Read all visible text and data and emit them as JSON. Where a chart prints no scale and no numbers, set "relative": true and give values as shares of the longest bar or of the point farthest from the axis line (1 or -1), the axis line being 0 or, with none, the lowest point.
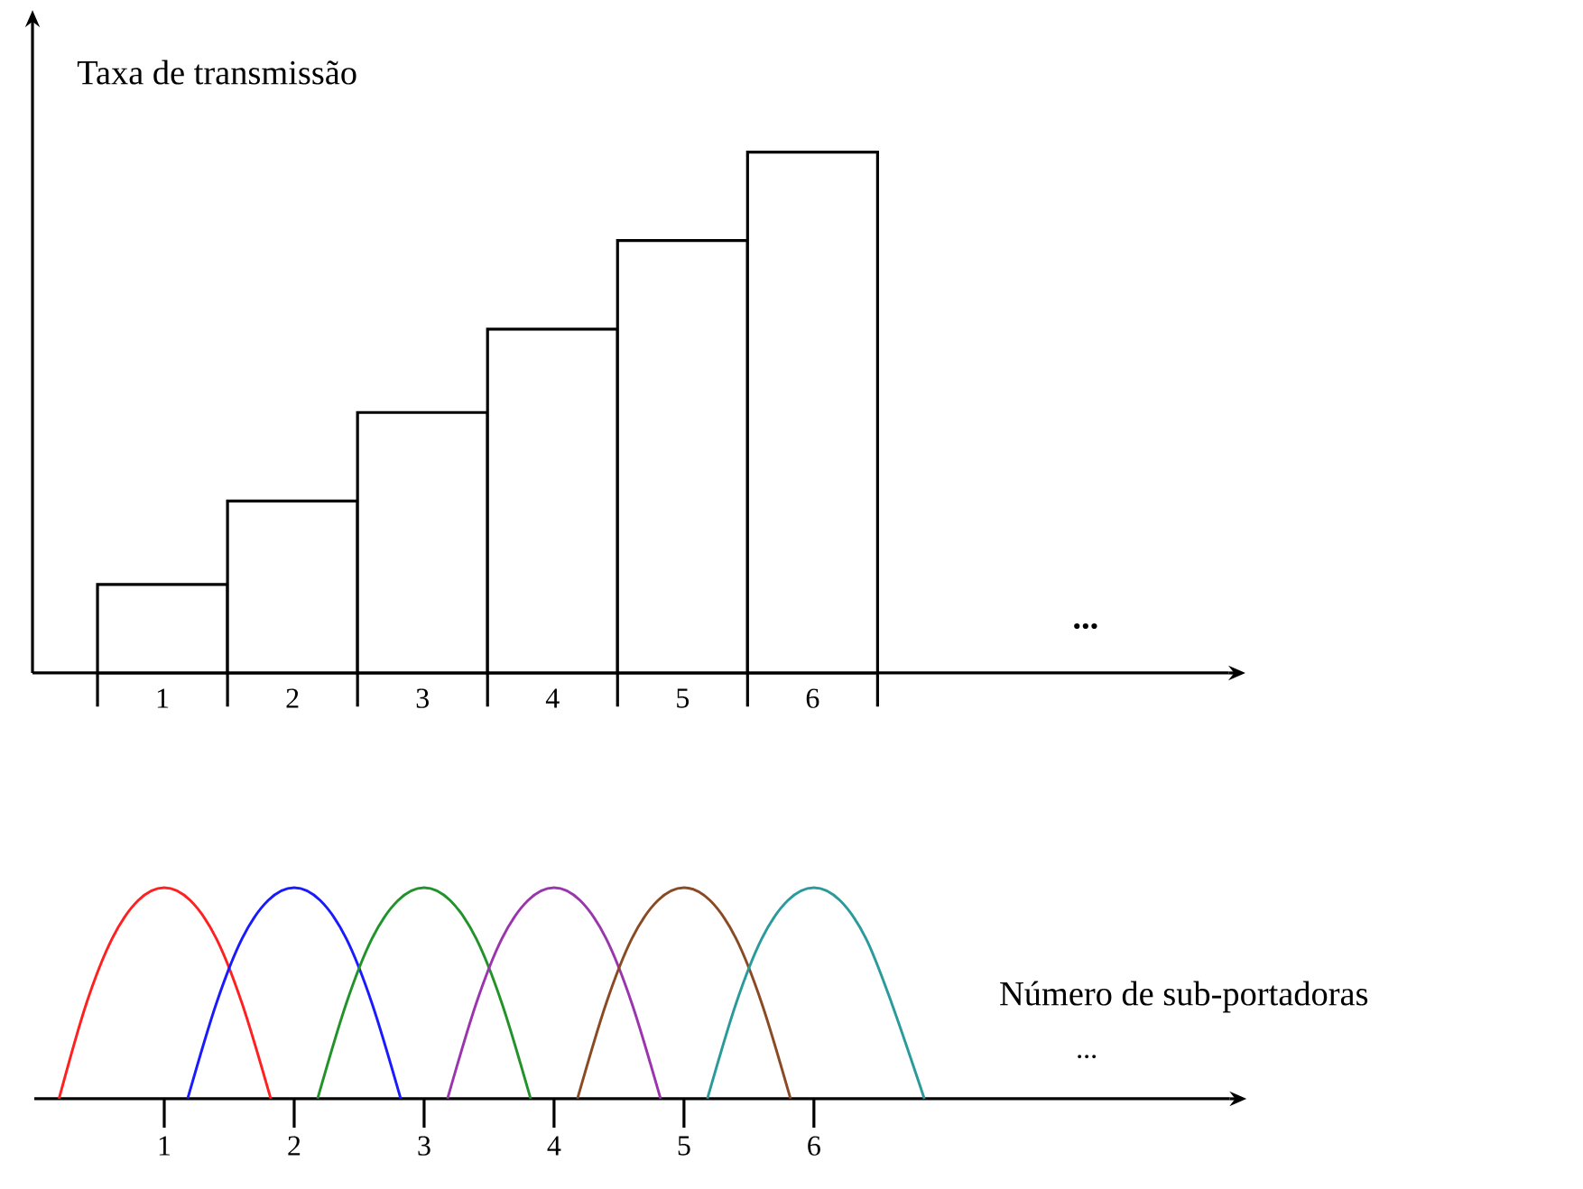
{
  "chart_data": [
    {
      "type": "bar",
      "relative": true,
      "ylabel": "Taxa de transmissão",
      "categories": [
        "1",
        "2",
        "3",
        "4",
        "5",
        "6"
      ],
      "values": [
        0.17,
        0.33,
        0.5,
        0.66,
        0.83,
        1
      ],
      "color": "#000000",
      "annotations": [
        "..."
      ]
    },
    {
      "type": "line",
      "relative": true,
      "xlabel": "Número de sub-portadoras",
      "xlim": [
        0,
        9.2
      ],
      "xticks": [
        1,
        2,
        3,
        4,
        5,
        6
      ],
      "annotations": [
        "..."
      ],
      "series": [
        {
          "color": "#ff2020",
          "x": [
            0.19,
            0.4,
            0.6,
            0.8,
            1,
            1.2,
            1.4,
            1.6,
            1.82
          ],
          "values": [
            0,
            0.45,
            0.76,
            0.94,
            1,
            0.94,
            0.76,
            0.45,
            0
          ]
        },
        {
          "color": "#1a1aff",
          "x": [
            1.18,
            1.4,
            1.6,
            1.8,
            2,
            2.2,
            2.4,
            2.6,
            2.82
          ],
          "values": [
            0,
            0.45,
            0.76,
            0.94,
            1,
            0.94,
            0.76,
            0.45,
            0
          ]
        },
        {
          "color": "#22932a",
          "x": [
            2.18,
            2.4,
            2.6,
            2.8,
            3,
            3.2,
            3.4,
            3.6,
            3.82
          ],
          "values": [
            0,
            0.45,
            0.76,
            0.94,
            1,
            0.94,
            0.76,
            0.45,
            0
          ]
        },
        {
          "color": "#9b35ad",
          "x": [
            3.18,
            3.4,
            3.6,
            3.8,
            4,
            4.2,
            4.4,
            4.6,
            4.82
          ],
          "values": [
            0,
            0.45,
            0.76,
            0.94,
            1,
            0.94,
            0.76,
            0.45,
            0
          ]
        },
        {
          "color": "#8a4a24",
          "x": [
            4.18,
            4.4,
            4.6,
            4.8,
            5,
            5.2,
            5.4,
            5.6,
            5.82
          ],
          "values": [
            0,
            0.45,
            0.76,
            0.94,
            1,
            0.94,
            0.76,
            0.45,
            0
          ]
        },
        {
          "color": "#2a9a9a",
          "x": [
            5.18,
            5.4,
            5.6,
            5.8,
            6,
            6.2,
            6.4,
            6.6,
            6.85
          ],
          "values": [
            0,
            0.45,
            0.76,
            0.94,
            1,
            0.94,
            0.76,
            0.45,
            0
          ]
        }
      ]
    }
  ]
}
